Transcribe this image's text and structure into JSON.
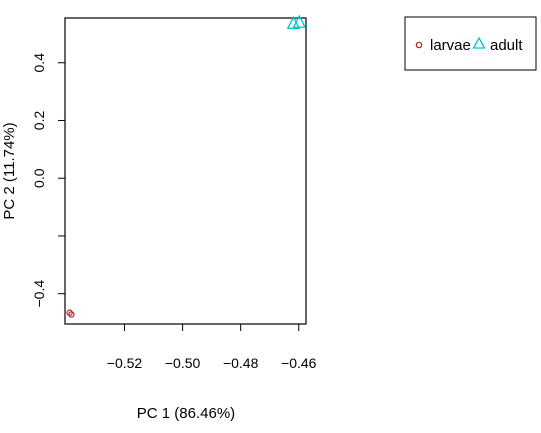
{
  "chart_data": {
    "type": "scatter",
    "title": "",
    "xlabel": "PC 1 (86.46%)",
    "ylabel": "PC 2 (11.74%)",
    "xlim": [
      -0.5405,
      -0.4575
    ],
    "ylim": [
      -0.505,
      0.555
    ],
    "x_ticks": [
      -0.52,
      -0.5,
      -0.48,
      -0.46
    ],
    "x_tick_labels": [
      "−0.52",
      "−0.50",
      "−0.48",
      "−0.46"
    ],
    "y_ticks": [
      -0.4,
      -0.2,
      0.0,
      0.2,
      0.4
    ],
    "y_tick_labels": [
      "−0.4",
      "",
      "0.0",
      "0.2",
      "0.4"
    ],
    "grid": false,
    "legend_position": "top-right (outside plot)",
    "series": [
      {
        "name": "larvae",
        "marker": "circle",
        "color": "#b22222",
        "points": [
          [
            -0.5389,
            -0.466
          ],
          [
            -0.5383,
            -0.472
          ]
        ]
      },
      {
        "name": "adult",
        "marker": "triangle",
        "color": "#00c5cd",
        "points": [
          [
            -0.4618,
            0.537
          ],
          [
            -0.4598,
            0.541
          ]
        ]
      }
    ]
  }
}
